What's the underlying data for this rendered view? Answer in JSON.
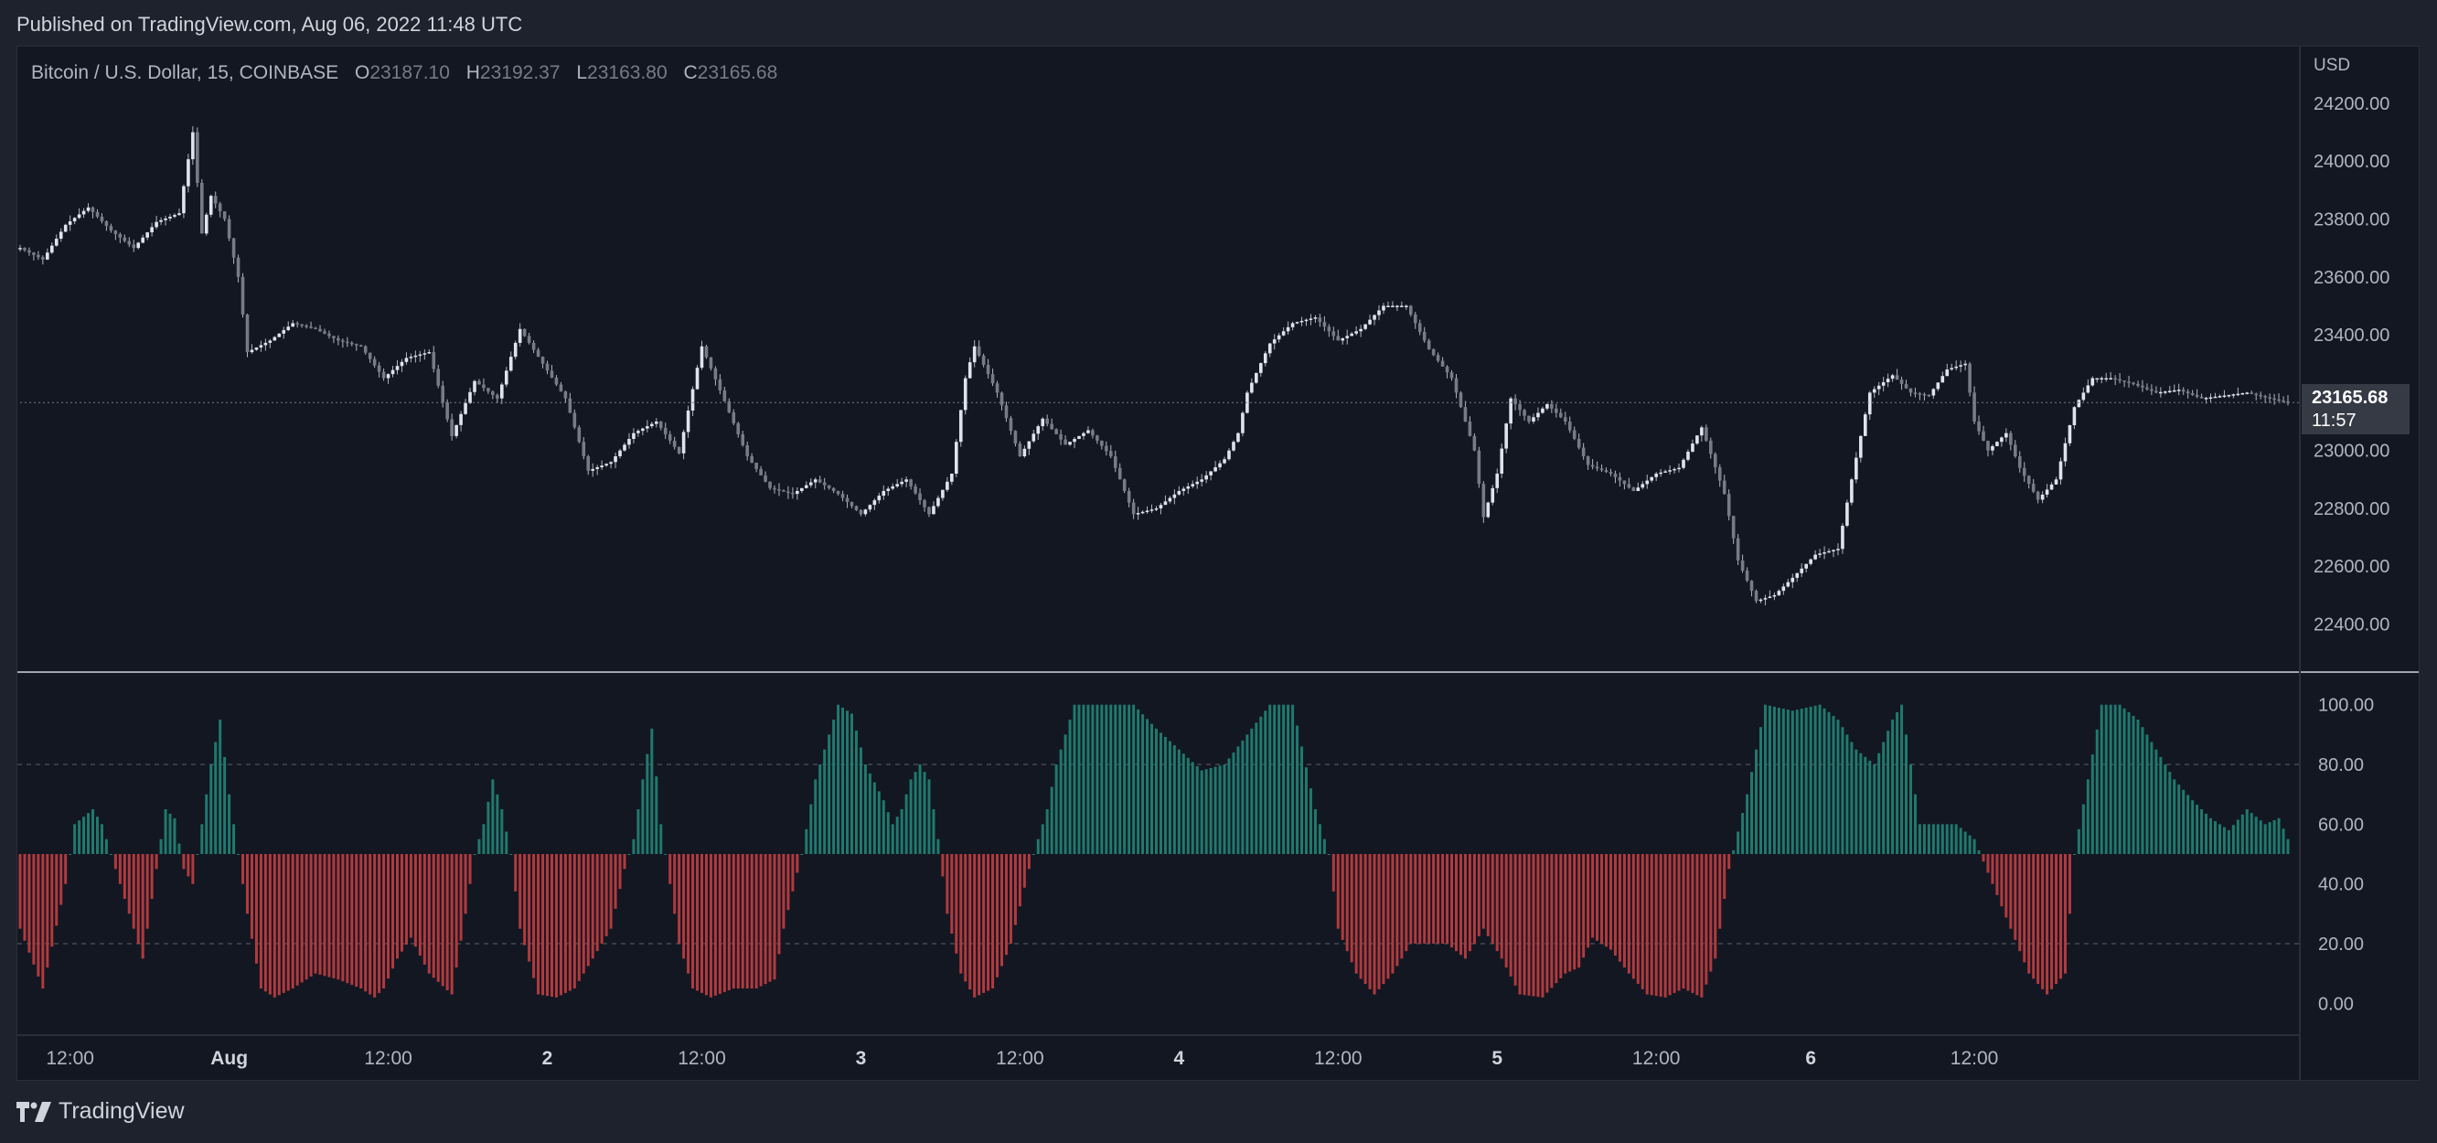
{
  "header": {
    "published": "Published on TradingView.com, Aug 06, 2022 11:48 UTC"
  },
  "legend": {
    "symbol": "Bitcoin / U.S. Dollar, 15, COINBASE",
    "o_label": "O",
    "o_value": "23187.10",
    "h_label": "H",
    "h_value": "23192.37",
    "l_label": "L",
    "l_value": "23163.80",
    "c_label": "C",
    "c_value": "23165.68"
  },
  "footer": {
    "brand": "TradingView"
  },
  "colors": {
    "bg": "#131722",
    "candle": "#b2b5be",
    "green": "#1f7a6e",
    "red": "#b23a3e",
    "grid": "#2a2e39",
    "text": "#b2b5be"
  },
  "chart_data": {
    "type": "candlestick",
    "currency": "USD",
    "price_label": "23165.68",
    "countdown": "11:57",
    "price": {
      "ylim": [
        22250,
        24380
      ],
      "yticks": [
        "24200.00",
        "24000.00",
        "23800.00",
        "23600.00",
        "23400.00",
        "23200.00",
        "23000.00",
        "22800.00",
        "22600.00",
        "22400.00"
      ],
      "yvalues": [
        24200,
        24000,
        23800,
        23600,
        23400,
        23200,
        23000,
        22800,
        22600,
        22400
      ],
      "last": 23165.68,
      "points": [
        [
          0,
          23700
        ],
        [
          5,
          23660
        ],
        [
          10,
          23780
        ],
        [
          15,
          23840
        ],
        [
          20,
          23760
        ],
        [
          25,
          23700
        ],
        [
          30,
          23790
        ],
        [
          35,
          23820
        ],
        [
          38,
          24100
        ],
        [
          40,
          23750
        ],
        [
          42,
          23880
        ],
        [
          45,
          23800
        ],
        [
          48,
          23600
        ],
        [
          50,
          23340
        ],
        [
          55,
          23380
        ],
        [
          60,
          23440
        ],
        [
          65,
          23420
        ],
        [
          70,
          23380
        ],
        [
          75,
          23360
        ],
        [
          80,
          23250
        ],
        [
          85,
          23320
        ],
        [
          90,
          23340
        ],
        [
          95,
          23050
        ],
        [
          100,
          23240
        ],
        [
          105,
          23180
        ],
        [
          110,
          23420
        ],
        [
          115,
          23300
        ],
        [
          120,
          23180
        ],
        [
          125,
          22930
        ],
        [
          130,
          22960
        ],
        [
          135,
          23060
        ],
        [
          140,
          23100
        ],
        [
          145,
          22990
        ],
        [
          150,
          23360
        ],
        [
          155,
          23170
        ],
        [
          160,
          22980
        ],
        [
          165,
          22870
        ],
        [
          170,
          22850
        ],
        [
          175,
          22900
        ],
        [
          180,
          22850
        ],
        [
          185,
          22780
        ],
        [
          190,
          22860
        ],
        [
          195,
          22900
        ],
        [
          200,
          22780
        ],
        [
          205,
          22920
        ],
        [
          208,
          23250
        ],
        [
          210,
          23360
        ],
        [
          215,
          23200
        ],
        [
          220,
          22980
        ],
        [
          225,
          23110
        ],
        [
          230,
          23020
        ],
        [
          235,
          23070
        ],
        [
          240,
          22980
        ],
        [
          245,
          22780
        ],
        [
          250,
          22800
        ],
        [
          255,
          22860
        ],
        [
          260,
          22900
        ],
        [
          265,
          22970
        ],
        [
          268,
          23060
        ],
        [
          270,
          23200
        ],
        [
          275,
          23370
        ],
        [
          280,
          23440
        ],
        [
          285,
          23460
        ],
        [
          290,
          23380
        ],
        [
          295,
          23420
        ],
        [
          300,
          23500
        ],
        [
          305,
          23500
        ],
        [
          310,
          23350
        ],
        [
          315,
          23250
        ],
        [
          320,
          23000
        ],
        [
          322,
          22770
        ],
        [
          325,
          22920
        ],
        [
          328,
          23180
        ],
        [
          332,
          23100
        ],
        [
          336,
          23160
        ],
        [
          340,
          23100
        ],
        [
          345,
          22950
        ],
        [
          350,
          22920
        ],
        [
          355,
          22860
        ],
        [
          360,
          22920
        ],
        [
          365,
          22940
        ],
        [
          370,
          23080
        ],
        [
          375,
          22850
        ],
        [
          378,
          22620
        ],
        [
          382,
          22480
        ],
        [
          386,
          22500
        ],
        [
          390,
          22560
        ],
        [
          395,
          22640
        ],
        [
          400,
          22660
        ],
        [
          403,
          22900
        ],
        [
          407,
          23200
        ],
        [
          412,
          23260
        ],
        [
          416,
          23200
        ],
        [
          420,
          23190
        ],
        [
          424,
          23280
        ],
        [
          428,
          23300
        ],
        [
          430,
          23100
        ],
        [
          433,
          23000
        ],
        [
          437,
          23060
        ],
        [
          440,
          22940
        ],
        [
          444,
          22830
        ],
        [
          448,
          22900
        ],
        [
          452,
          23150
        ],
        [
          456,
          23250
        ],
        [
          460,
          23250
        ],
        [
          465,
          23230
        ],
        [
          470,
          23200
        ],
        [
          475,
          23210
        ],
        [
          480,
          23180
        ],
        [
          485,
          23190
        ],
        [
          490,
          23200
        ],
        [
          495,
          23180
        ],
        [
          499,
          23166
        ]
      ]
    },
    "indicator": {
      "ylim": [
        -10,
        110
      ],
      "yticks": [
        "100.00",
        "80.00",
        "60.00",
        "40.00",
        "20.00",
        "0.00"
      ],
      "yvalues": [
        100,
        80,
        60,
        40,
        20,
        0
      ],
      "levels": [
        80,
        20
      ],
      "midline": 50,
      "points": [
        [
          0,
          25
        ],
        [
          5,
          5
        ],
        [
          10,
          40
        ],
        [
          12,
          60
        ],
        [
          16,
          65
        ],
        [
          18,
          60
        ],
        [
          20,
          50
        ],
        [
          22,
          40
        ],
        [
          25,
          25
        ],
        [
          27,
          15
        ],
        [
          30,
          45
        ],
        [
          32,
          65
        ],
        [
          34,
          62
        ],
        [
          36,
          45
        ],
        [
          38,
          40
        ],
        [
          40,
          60
        ],
        [
          42,
          80
        ],
        [
          44,
          95
        ],
        [
          46,
          70
        ],
        [
          48,
          50
        ],
        [
          50,
          30
        ],
        [
          53,
          5
        ],
        [
          56,
          2
        ],
        [
          60,
          5
        ],
        [
          65,
          10
        ],
        [
          70,
          8
        ],
        [
          75,
          5
        ],
        [
          78,
          2
        ],
        [
          80,
          5
        ],
        [
          83,
          15
        ],
        [
          86,
          22
        ],
        [
          90,
          10
        ],
        [
          95,
          3
        ],
        [
          98,
          30
        ],
        [
          100,
          50
        ],
        [
          102,
          60
        ],
        [
          104,
          75
        ],
        [
          106,
          65
        ],
        [
          108,
          50
        ],
        [
          110,
          25
        ],
        [
          114,
          3
        ],
        [
          118,
          2
        ],
        [
          122,
          5
        ],
        [
          126,
          15
        ],
        [
          130,
          25
        ],
        [
          133,
          45
        ],
        [
          135,
          55
        ],
        [
          137,
          75
        ],
        [
          139,
          92
        ],
        [
          141,
          60
        ],
        [
          143,
          40
        ],
        [
          145,
          20
        ],
        [
          148,
          5
        ],
        [
          152,
          2
        ],
        [
          157,
          5
        ],
        [
          162,
          5
        ],
        [
          166,
          8
        ],
        [
          168,
          25
        ],
        [
          172,
          50
        ],
        [
          175,
          75
        ],
        [
          178,
          90
        ],
        [
          180,
          100
        ],
        [
          183,
          97
        ],
        [
          186,
          80
        ],
        [
          190,
          68
        ],
        [
          192,
          60
        ],
        [
          194,
          65
        ],
        [
          196,
          75
        ],
        [
          198,
          80
        ],
        [
          200,
          75
        ],
        [
          202,
          55
        ],
        [
          204,
          30
        ],
        [
          207,
          10
        ],
        [
          210,
          2
        ],
        [
          214,
          5
        ],
        [
          218,
          20
        ],
        [
          222,
          45
        ],
        [
          226,
          65
        ],
        [
          228,
          80
        ],
        [
          232,
          100
        ],
        [
          240,
          100
        ],
        [
          245,
          100
        ],
        [
          250,
          92
        ],
        [
          255,
          85
        ],
        [
          260,
          78
        ],
        [
          265,
          80
        ],
        [
          270,
          90
        ],
        [
          275,
          100
        ],
        [
          280,
          100
        ],
        [
          285,
          65
        ],
        [
          288,
          50
        ],
        [
          290,
          25
        ],
        [
          294,
          10
        ],
        [
          298,
          3
        ],
        [
          302,
          10
        ],
        [
          306,
          20
        ],
        [
          310,
          20
        ],
        [
          314,
          20
        ],
        [
          318,
          15
        ],
        [
          322,
          25
        ],
        [
          326,
          15
        ],
        [
          330,
          3
        ],
        [
          335,
          2
        ],
        [
          340,
          10
        ],
        [
          343,
          12
        ],
        [
          346,
          22
        ],
        [
          350,
          18
        ],
        [
          354,
          10
        ],
        [
          358,
          3
        ],
        [
          362,
          2
        ],
        [
          366,
          5
        ],
        [
          370,
          2
        ],
        [
          373,
          15
        ],
        [
          376,
          45
        ],
        [
          380,
          70
        ],
        [
          384,
          100
        ],
        [
          390,
          98
        ],
        [
          396,
          100
        ],
        [
          400,
          95
        ],
        [
          404,
          85
        ],
        [
          408,
          80
        ],
        [
          412,
          95
        ],
        [
          414,
          100
        ],
        [
          418,
          60
        ],
        [
          422,
          60
        ],
        [
          426,
          60
        ],
        [
          430,
          55
        ],
        [
          434,
          40
        ],
        [
          438,
          25
        ],
        [
          442,
          10
        ],
        [
          446,
          3
        ],
        [
          450,
          10
        ],
        [
          452,
          50
        ],
        [
          455,
          75
        ],
        [
          458,
          100
        ],
        [
          462,
          100
        ],
        [
          466,
          95
        ],
        [
          470,
          85
        ],
        [
          474,
          75
        ],
        [
          478,
          68
        ],
        [
          482,
          62
        ],
        [
          486,
          58
        ],
        [
          490,
          65
        ],
        [
          494,
          60
        ],
        [
          497,
          62
        ],
        [
          499,
          55
        ]
      ]
    },
    "xaxis": {
      "labels": [
        "12:00",
        "Aug",
        "12:00",
        "2",
        "12:00",
        "3",
        "12:00",
        "4",
        "12:00",
        "5",
        "12:00",
        "6",
        "12:00"
      ],
      "positions": [
        11,
        46,
        81,
        116,
        150,
        185,
        220,
        255,
        290,
        325,
        360,
        394,
        430
      ]
    }
  }
}
